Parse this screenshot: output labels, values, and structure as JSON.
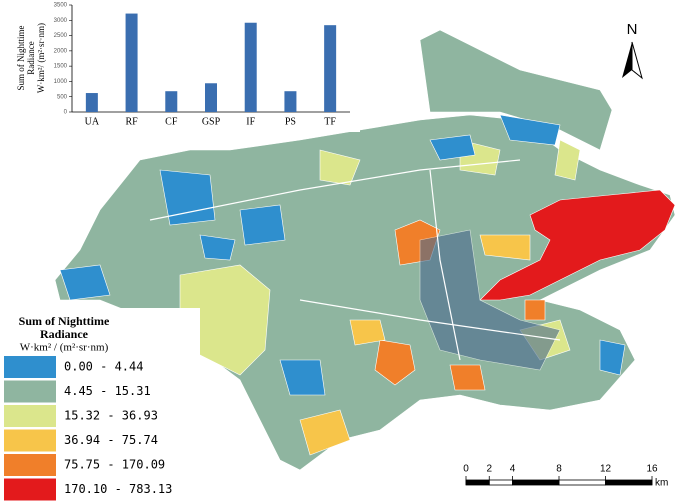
{
  "chart_data": {
    "type": "bar",
    "ylabel": [
      "Sum of Nighttime",
      "Radiance",
      "W·km²/ (m²·sr·nm)"
    ],
    "categories": [
      "UA",
      "RF",
      "CF",
      "GSP",
      "IF",
      "PS",
      "TF"
    ],
    "values": [
      620,
      3220,
      680,
      940,
      2920,
      680,
      2840
    ],
    "color": "#3a6eb0",
    "ylim": [
      0,
      3500
    ],
    "yticks": [
      0,
      500,
      1000,
      1500,
      2000,
      2500,
      3000,
      3500
    ]
  },
  "legend": {
    "title": [
      "Sum of Nighttime",
      "Radiance",
      "W·km² / (m²·sr·nm)"
    ],
    "items": [
      {
        "label": "0.00 - 4.44",
        "color": "#2f8fce"
      },
      {
        "label": "4.45 - 15.31",
        "color": "#8fb5a0"
      },
      {
        "label": "15.32 - 36.93",
        "color": "#dbe68c"
      },
      {
        "label": "36.94 - 75.74",
        "color": "#f7c54a"
      },
      {
        "label": "75.75 - 170.09",
        "color": "#f07f2a"
      },
      {
        "label": "170.10 - 783.13",
        "color": "#e31a1c"
      }
    ]
  },
  "north": "N",
  "scale_bar": {
    "ticks": [
      0,
      2,
      4,
      8,
      12,
      16
    ],
    "unit": "km"
  }
}
